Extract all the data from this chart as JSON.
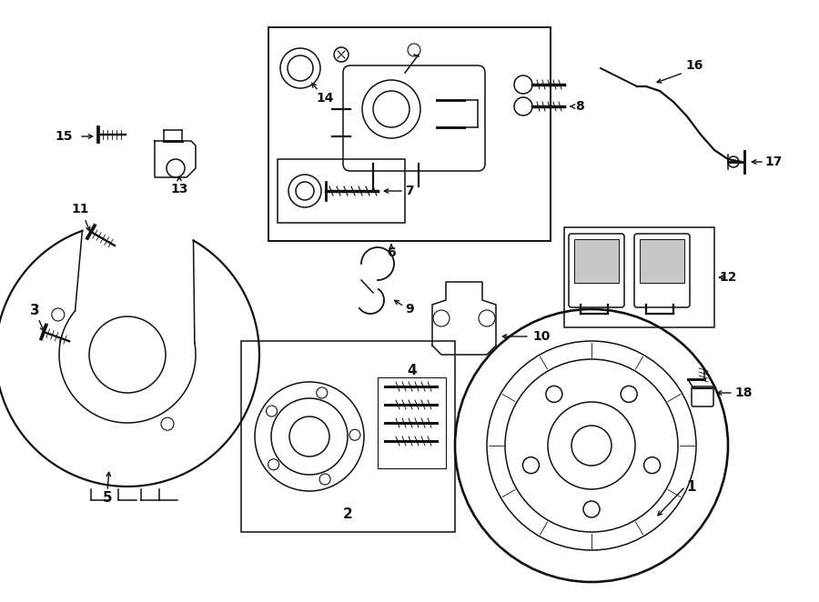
{
  "bg_color": "#ffffff",
  "line_color": "#111111",
  "figsize": [
    9.0,
    6.62
  ],
  "dpi": 100,
  "lw": 1.1
}
